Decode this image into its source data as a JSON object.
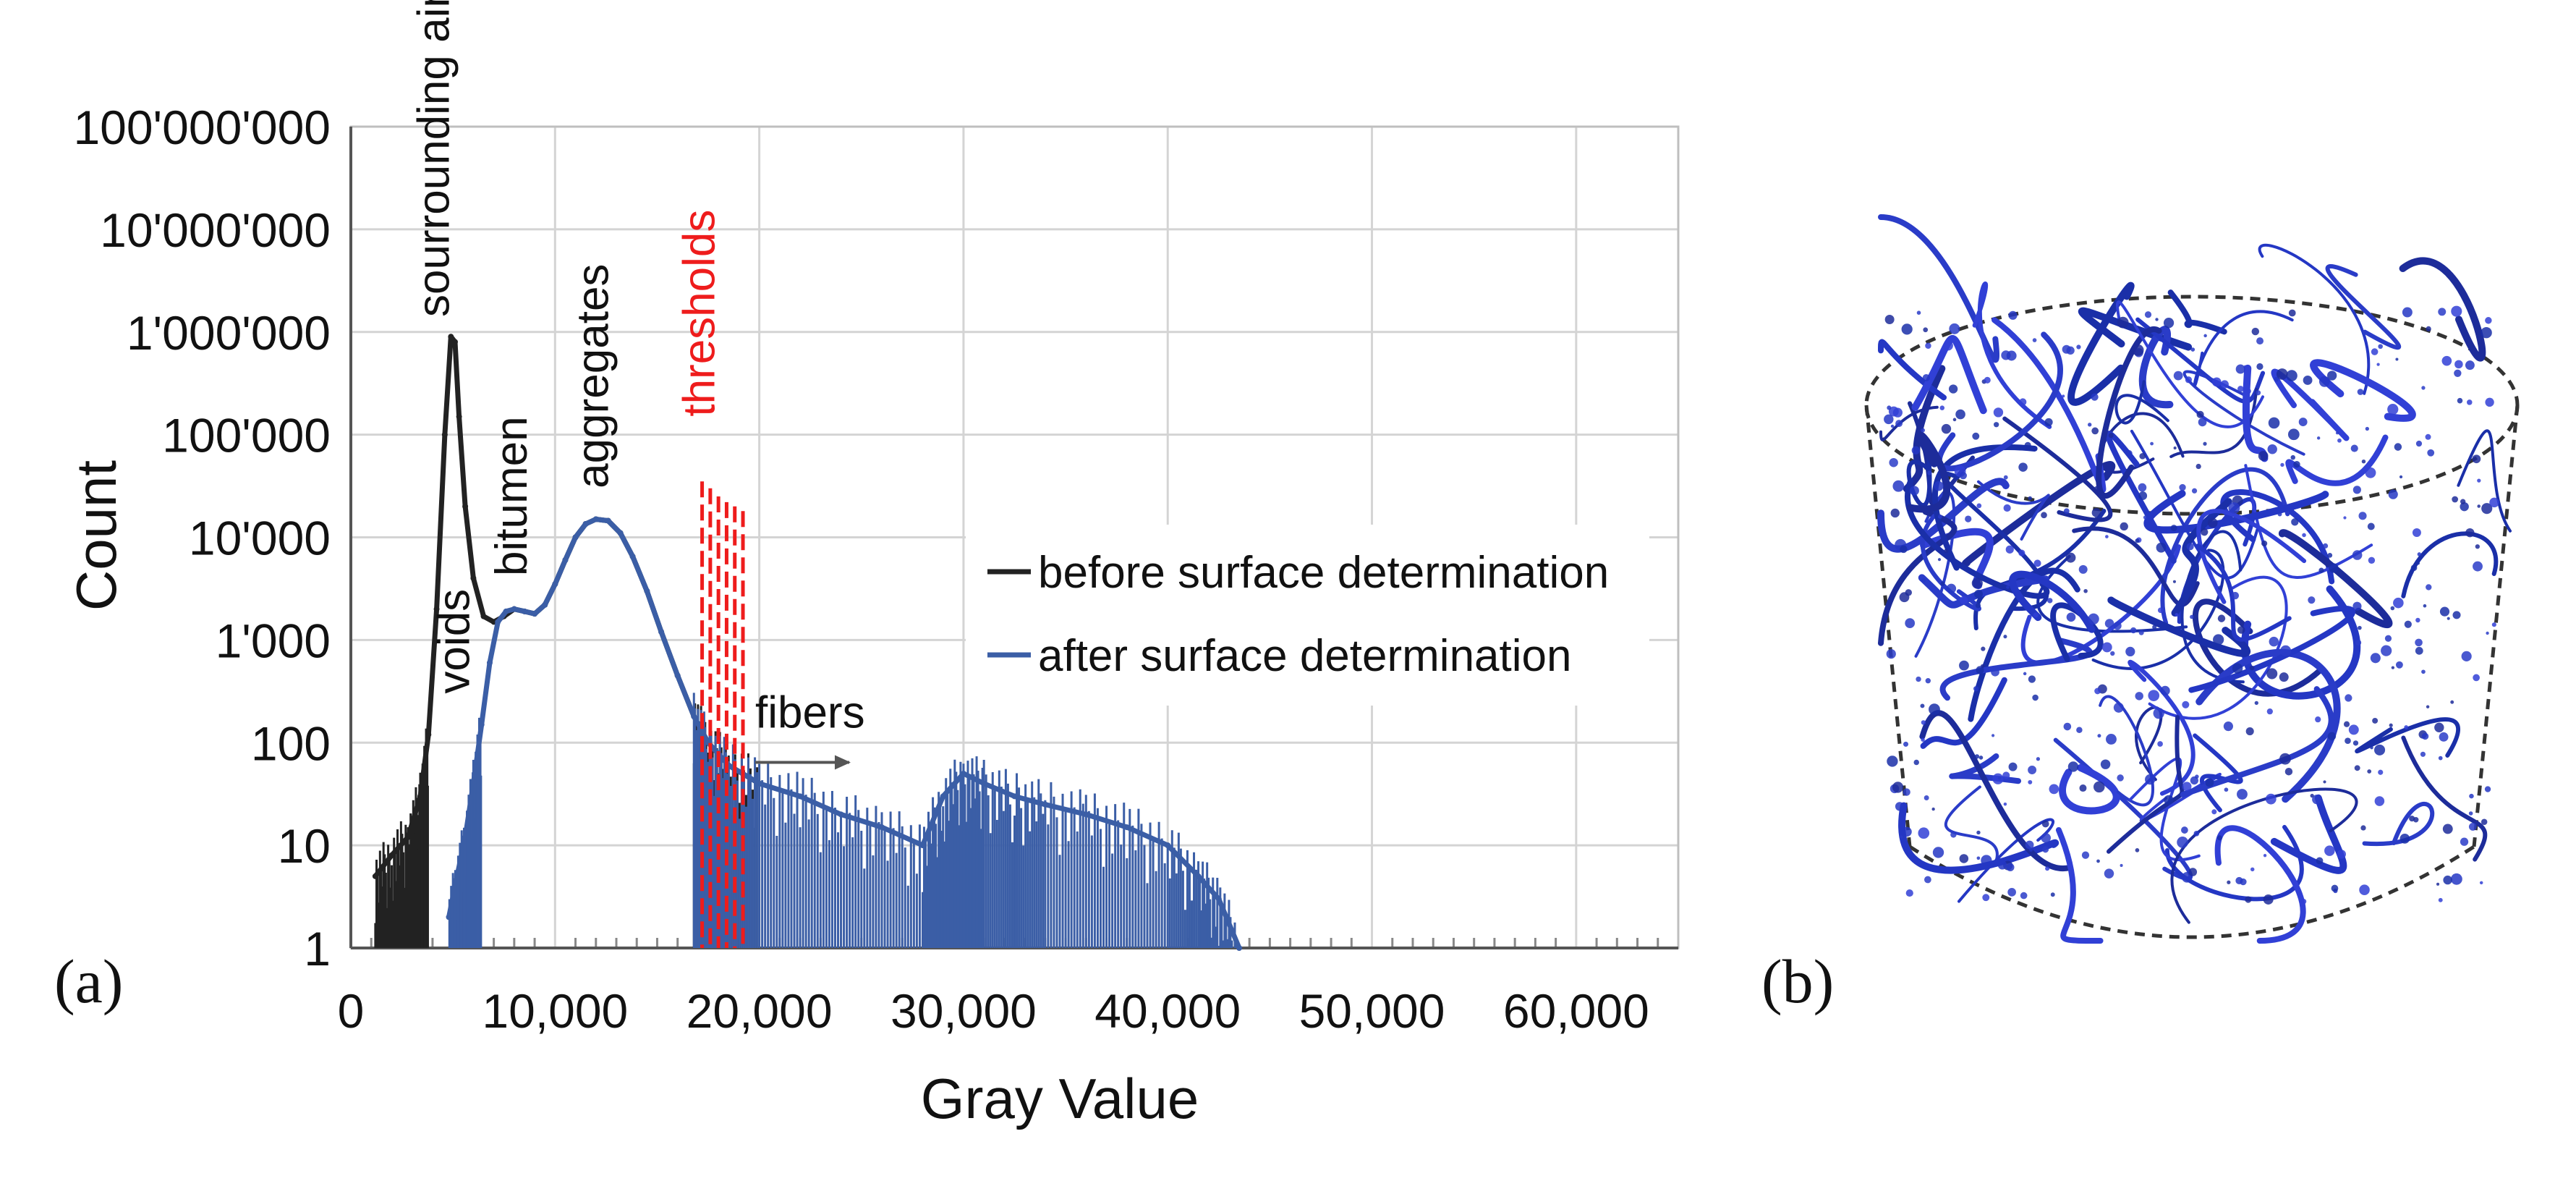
{
  "figure": {
    "panel_a_label": "(a)",
    "panel_b_label": "(b)"
  },
  "chart_data": {
    "type": "line",
    "title": "",
    "xlabel": "Gray Value",
    "ylabel": "Count",
    "xlim": [
      0,
      65000
    ],
    "ylim": [
      1,
      100000000
    ],
    "y_scale": "log",
    "grid": true,
    "legend_position": "center-right",
    "x_ticks": [
      0,
      10000,
      20000,
      30000,
      40000,
      50000,
      60000
    ],
    "x_tick_labels": [
      "0",
      "10,000",
      "20,000",
      "30,000",
      "40,000",
      "50,000",
      "60,000"
    ],
    "y_ticks": [
      1,
      10,
      100,
      1000,
      10000,
      100000,
      1000000,
      10000000,
      100000000
    ],
    "y_tick_labels": [
      "1",
      "10",
      "100",
      "1'000",
      "10'000",
      "100'000",
      "1'000'000",
      "10'000'000",
      "100'000'000"
    ],
    "series": [
      {
        "name": "before surface determination",
        "color": "#222222",
        "x": [
          1200,
          2000,
          2800,
          3400,
          3800,
          4200,
          4600,
          4900,
          5100,
          5300,
          5600,
          6000,
          6500,
          7000,
          7500,
          8000,
          8500,
          9000,
          9500,
          10000,
          10500,
          11000,
          11500,
          12000,
          12600,
          13200,
          13800,
          14500,
          15200,
          16000,
          16800,
          17500,
          18500,
          20000
        ],
        "y": [
          5,
          8,
          12,
          30,
          120,
          2000,
          100000,
          900000,
          800000,
          150000,
          20000,
          4000,
          1700,
          1500,
          1700,
          2000,
          1900,
          1800,
          2200,
          3500,
          6000,
          10000,
          13500,
          15000,
          14500,
          11000,
          6500,
          3000,
          1200,
          450,
          180,
          100,
          60,
          40
        ]
      },
      {
        "name": "after surface determination",
        "color": "#3b5ea6",
        "x": [
          4800,
          5200,
          5600,
          6000,
          6400,
          6800,
          7200,
          7600,
          8000,
          8500,
          9000,
          9500,
          10000,
          10500,
          11000,
          11500,
          12000,
          12600,
          13200,
          13800,
          14500,
          15200,
          16000,
          16800,
          17500,
          18500,
          20000,
          22000,
          24000,
          26000,
          28000,
          29000,
          30000,
          31000,
          32500,
          34000,
          36000,
          38000,
          40000,
          41500,
          42500,
          43500
        ],
        "y": [
          2,
          5,
          12,
          40,
          150,
          600,
          1500,
          1900,
          2000,
          1900,
          1800,
          2200,
          3500,
          6000,
          10000,
          13500,
          15000,
          14500,
          11000,
          6500,
          3000,
          1200,
          450,
          180,
          100,
          60,
          40,
          30,
          20,
          15,
          10,
          30,
          50,
          40,
          30,
          25,
          20,
          15,
          10,
          5,
          3,
          1
        ]
      }
    ],
    "thresholds": {
      "label": "thresholds",
      "color": "#ee1c1c",
      "x": [
        17200,
        17600,
        18000,
        18400,
        18800,
        19200
      ],
      "top": [
        35000,
        30000,
        25000,
        22000,
        20000,
        18000
      ]
    },
    "annotations": [
      {
        "text": "sourrounding air",
        "x": 4800,
        "y": 1400000,
        "rotated": true
      },
      {
        "text": "voids",
        "x": 5800,
        "y": 300,
        "rotated": true
      },
      {
        "text": "bitumen",
        "x": 8600,
        "y": 4200,
        "rotated": true
      },
      {
        "text": "aggregates",
        "x": 12600,
        "y": 30000,
        "rotated": true
      },
      {
        "text": "thresholds",
        "x": 17800,
        "y": 150000,
        "rotated": true
      },
      {
        "text": "fibers",
        "x": 19800,
        "y": 140,
        "rotated": false
      }
    ]
  }
}
